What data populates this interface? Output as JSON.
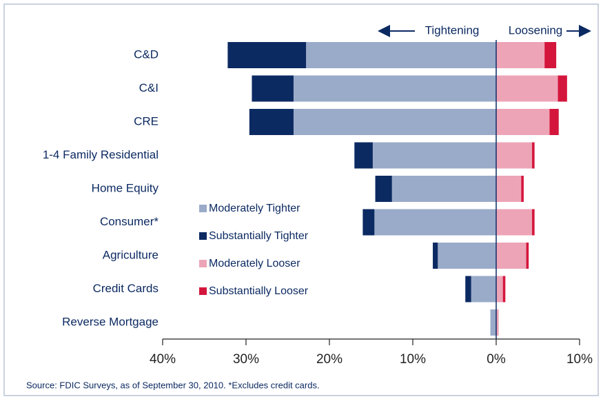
{
  "chart_data": {
    "type": "diverging-bar",
    "header_left": "Tightening",
    "header_right": "Loosening",
    "categories": [
      "C&D",
      "C&I",
      "CRE",
      "1-4 Family Residential",
      "Home Equity",
      "Consumer*",
      "Agriculture",
      "Credit Cards",
      "Reverse Mortgage"
    ],
    "series": [
      {
        "name": "Moderately Tighter",
        "color": "#9aabc9",
        "values": [
          -22.8,
          -24.3,
          -24.3,
          -14.8,
          -12.5,
          -14.6,
          -7.0,
          -3.0,
          -0.7
        ]
      },
      {
        "name": "Substantially Tighter",
        "color": "#0c2a62",
        "values": [
          -9.4,
          -5.0,
          -5.3,
          -2.2,
          -2.0,
          -1.4,
          -0.6,
          -0.7,
          0
        ]
      },
      {
        "name": "Moderately Looser",
        "color": "#eda4b7",
        "values": [
          5.8,
          7.4,
          6.4,
          4.3,
          3.0,
          4.3,
          3.6,
          0.8,
          0.3
        ]
      },
      {
        "name": "Substantially Looser",
        "color": "#d4163c",
        "values": [
          1.4,
          1.1,
          1.1,
          0.3,
          0.3,
          0.3,
          0.3,
          0.3,
          0
        ]
      }
    ],
    "xlim": [
      -40,
      10
    ],
    "xticks": [
      {
        "value": -40,
        "label": "40%"
      },
      {
        "value": -30,
        "label": "30%"
      },
      {
        "value": -20,
        "label": "20%"
      },
      {
        "value": -10,
        "label": "10%"
      },
      {
        "value": 0,
        "label": "0%"
      },
      {
        "value": 10,
        "label": "10%"
      }
    ],
    "footnote": "Source: FDIC Surveys, as of September 30, 2010.  *Excludes credit cards."
  }
}
